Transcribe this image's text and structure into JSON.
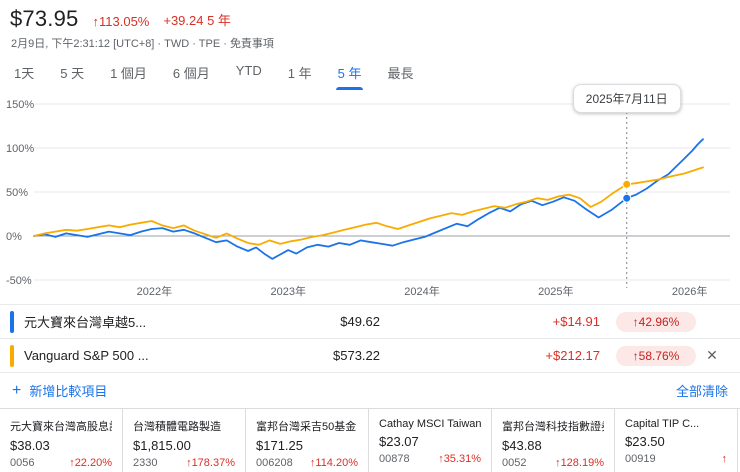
{
  "header": {
    "price": "$73.95",
    "change_pct": "↑113.05%",
    "change_abs": "+39.24 5 年",
    "meta": "2月9日, 下午2:31:12 [UTC+8] · TWD · TPE ·",
    "disclaimer": "免責事項"
  },
  "tabs": {
    "items": [
      "1天",
      "5 天",
      "1 個月",
      "6 個月",
      "YTD",
      "1 年",
      "5 年",
      "最長"
    ],
    "selected": "5 年"
  },
  "chart_data": {
    "type": "line",
    "x_domain": [
      2021.1,
      2026.1
    ],
    "x_ticks": [
      {
        "label": "2022年",
        "year": 2022
      },
      {
        "label": "2023年",
        "year": 2023
      },
      {
        "label": "2024年",
        "year": 2024
      },
      {
        "label": "2025年",
        "year": 2025
      },
      {
        "label": "2026年",
        "year": 2026
      }
    ],
    "y_ticks": [
      {
        "label": "150%",
        "value": 150
      },
      {
        "label": "100%",
        "value": 100
      },
      {
        "label": "50%",
        "value": 50
      },
      {
        "label": "0%",
        "value": 0
      },
      {
        "label": "-50%",
        "value": -50
      }
    ],
    "hover": {
      "label": "2025年7月11日",
      "year": 2025.53,
      "values": [
        42.96,
        58.76
      ]
    },
    "series": [
      {
        "name": "元大寶來台灣卓越5...",
        "color": "#1a73e8",
        "points": [
          [
            2021.1,
            0
          ],
          [
            2021.18,
            2
          ],
          [
            2021.26,
            -1
          ],
          [
            2021.34,
            3
          ],
          [
            2021.42,
            1
          ],
          [
            2021.5,
            -1
          ],
          [
            2021.58,
            2
          ],
          [
            2021.66,
            5
          ],
          [
            2021.74,
            3
          ],
          [
            2021.82,
            1
          ],
          [
            2021.9,
            5
          ],
          [
            2021.98,
            8
          ],
          [
            2022.06,
            9
          ],
          [
            2022.14,
            5
          ],
          [
            2022.22,
            7
          ],
          [
            2022.3,
            3
          ],
          [
            2022.38,
            -2
          ],
          [
            2022.46,
            -7
          ],
          [
            2022.54,
            -5
          ],
          [
            2022.62,
            -12
          ],
          [
            2022.7,
            -17
          ],
          [
            2022.76,
            -13
          ],
          [
            2022.82,
            -20
          ],
          [
            2022.88,
            -26
          ],
          [
            2022.94,
            -21
          ],
          [
            2023.0,
            -16
          ],
          [
            2023.06,
            -20
          ],
          [
            2023.14,
            -13
          ],
          [
            2023.22,
            -10
          ],
          [
            2023.3,
            -12
          ],
          [
            2023.38,
            -8
          ],
          [
            2023.46,
            -10
          ],
          [
            2023.54,
            -5
          ],
          [
            2023.62,
            -7
          ],
          [
            2023.7,
            -9
          ],
          [
            2023.78,
            -11
          ],
          [
            2023.86,
            -7
          ],
          [
            2023.94,
            -4
          ],
          [
            2024.02,
            -1
          ],
          [
            2024.1,
            4
          ],
          [
            2024.18,
            9
          ],
          [
            2024.26,
            14
          ],
          [
            2024.34,
            11
          ],
          [
            2024.42,
            19
          ],
          [
            2024.5,
            26
          ],
          [
            2024.58,
            32
          ],
          [
            2024.66,
            28
          ],
          [
            2024.74,
            36
          ],
          [
            2024.82,
            40
          ],
          [
            2024.9,
            35
          ],
          [
            2024.98,
            39
          ],
          [
            2025.06,
            44
          ],
          [
            2025.14,
            40
          ],
          [
            2025.22,
            31
          ],
          [
            2025.32,
            21
          ],
          [
            2025.42,
            30
          ],
          [
            2025.53,
            42.96
          ],
          [
            2025.6,
            47
          ],
          [
            2025.68,
            54
          ],
          [
            2025.76,
            63
          ],
          [
            2025.84,
            70
          ],
          [
            2025.9,
            79
          ],
          [
            2025.96,
            88
          ],
          [
            2026.02,
            97
          ],
          [
            2026.06,
            104
          ],
          [
            2026.1,
            110
          ]
        ]
      },
      {
        "name": "Vanguard S&P 500 ...",
        "color": "#f9ab00",
        "points": [
          [
            2021.1,
            0
          ],
          [
            2021.18,
            3
          ],
          [
            2021.26,
            5
          ],
          [
            2021.34,
            7
          ],
          [
            2021.42,
            6
          ],
          [
            2021.5,
            8
          ],
          [
            2021.58,
            10
          ],
          [
            2021.66,
            12
          ],
          [
            2021.74,
            10
          ],
          [
            2021.82,
            13
          ],
          [
            2021.9,
            15
          ],
          [
            2021.98,
            17
          ],
          [
            2022.06,
            12
          ],
          [
            2022.14,
            9
          ],
          [
            2022.22,
            12
          ],
          [
            2022.3,
            6
          ],
          [
            2022.38,
            2
          ],
          [
            2022.46,
            -2
          ],
          [
            2022.54,
            3
          ],
          [
            2022.62,
            -3
          ],
          [
            2022.7,
            -8
          ],
          [
            2022.78,
            -10
          ],
          [
            2022.86,
            -5
          ],
          [
            2022.94,
            -9
          ],
          [
            2023.02,
            -6
          ],
          [
            2023.1,
            -4
          ],
          [
            2023.18,
            -1
          ],
          [
            2023.26,
            1
          ],
          [
            2023.34,
            4
          ],
          [
            2023.42,
            7
          ],
          [
            2023.5,
            10
          ],
          [
            2023.58,
            13
          ],
          [
            2023.66,
            15
          ],
          [
            2023.74,
            11
          ],
          [
            2023.82,
            8
          ],
          [
            2023.9,
            12
          ],
          [
            2023.98,
            16
          ],
          [
            2024.06,
            20
          ],
          [
            2024.14,
            23
          ],
          [
            2024.22,
            26
          ],
          [
            2024.3,
            24
          ],
          [
            2024.38,
            28
          ],
          [
            2024.46,
            31
          ],
          [
            2024.54,
            34
          ],
          [
            2024.62,
            32
          ],
          [
            2024.7,
            36
          ],
          [
            2024.78,
            39
          ],
          [
            2024.86,
            43
          ],
          [
            2024.94,
            41
          ],
          [
            2025.02,
            45
          ],
          [
            2025.1,
            47
          ],
          [
            2025.18,
            43
          ],
          [
            2025.26,
            33
          ],
          [
            2025.34,
            39
          ],
          [
            2025.42,
            48
          ],
          [
            2025.53,
            58.76
          ],
          [
            2025.6,
            60
          ],
          [
            2025.68,
            62
          ],
          [
            2025.76,
            64
          ],
          [
            2025.84,
            67
          ],
          [
            2025.9,
            69
          ],
          [
            2025.96,
            71
          ],
          [
            2026.02,
            74
          ],
          [
            2026.06,
            76
          ],
          [
            2026.1,
            78
          ]
        ]
      }
    ]
  },
  "legend": [
    {
      "name": "元大寶來台灣卓越5...",
      "color": "#1a73e8",
      "value": "$49.62",
      "change": "+$14.91",
      "pct": "↑42.96%"
    },
    {
      "name": "Vanguard S&P 500 ...",
      "color": "#f9ab00",
      "value": "$573.22",
      "change": "+$212.17",
      "pct": "↑58.76%"
    }
  ],
  "compare": {
    "add_label": "新增比較項目",
    "clear_label": "全部清除",
    "close_icon": "✕",
    "plus_icon": "+"
  },
  "cards": [
    {
      "title": "元大寶來台灣高股息證...",
      "price": "$38.03",
      "code": "0056",
      "pct": "↑22.20%"
    },
    {
      "title": "台灣積體電路製造",
      "price": "$1,815.00",
      "code": "2330",
      "pct": "↑178.37%"
    },
    {
      "title": "富邦台灣采吉50基金",
      "price": "$171.25",
      "code": "006208",
      "pct": "↑114.20%"
    },
    {
      "title": "Cathay MSCI Taiwan E...",
      "price": "$23.07",
      "code": "00878",
      "pct": "↑35.31%"
    },
    {
      "title": "富邦台灣科技指數證券...",
      "price": "$43.88",
      "code": "0052",
      "pct": "↑128.19%"
    },
    {
      "title": "Capital TIP C...",
      "price": "$23.50",
      "code": "00919",
      "pct": "↑"
    }
  ]
}
